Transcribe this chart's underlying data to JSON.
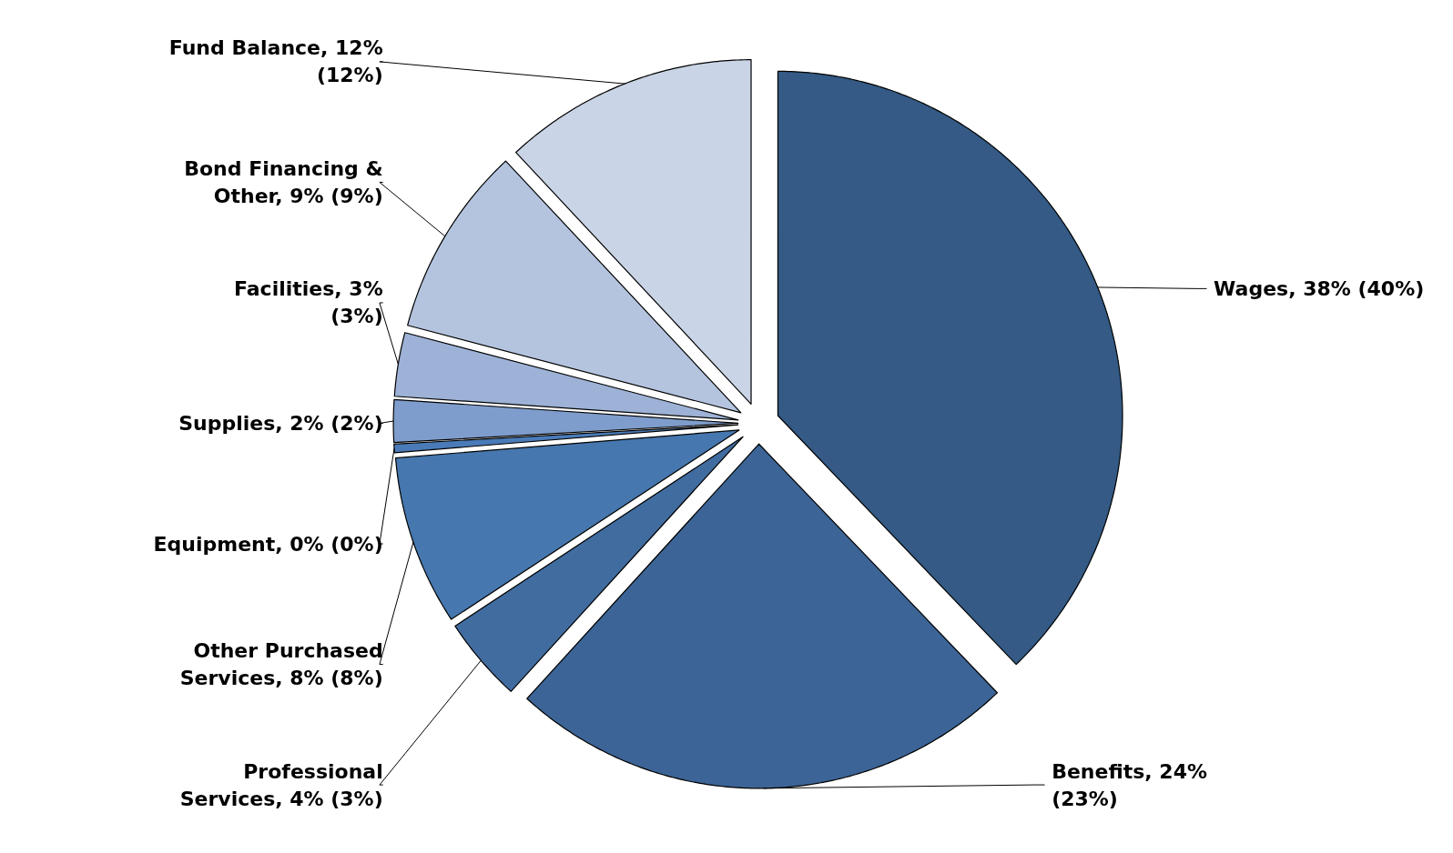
{
  "chart_data": {
    "type": "pie",
    "categories": [
      "Wages",
      "Benefits",
      "Professional Services",
      "Other Purchased Services",
      "Equipment",
      "Supplies",
      "Facilities",
      "Bond Financing & Other",
      "Fund Balance"
    ],
    "values": [
      38,
      24,
      4,
      8,
      0.4,
      2,
      3,
      9,
      12
    ],
    "value_labels": [
      "38% (40%)",
      "24% (23%)",
      "4% (3%)",
      "8% (8%)",
      "0% (0%)",
      "2% (2%)",
      "3% (3%)",
      "9% (9%)",
      "12% (12%)"
    ],
    "colors": [
      "#345a85",
      "#3c6496",
      "#416ca0",
      "#4677ae",
      "#4a7bb8",
      "#7f9dcc",
      "#9db2d6",
      "#b4c4df",
      "#c9d4e6"
    ]
  }
}
